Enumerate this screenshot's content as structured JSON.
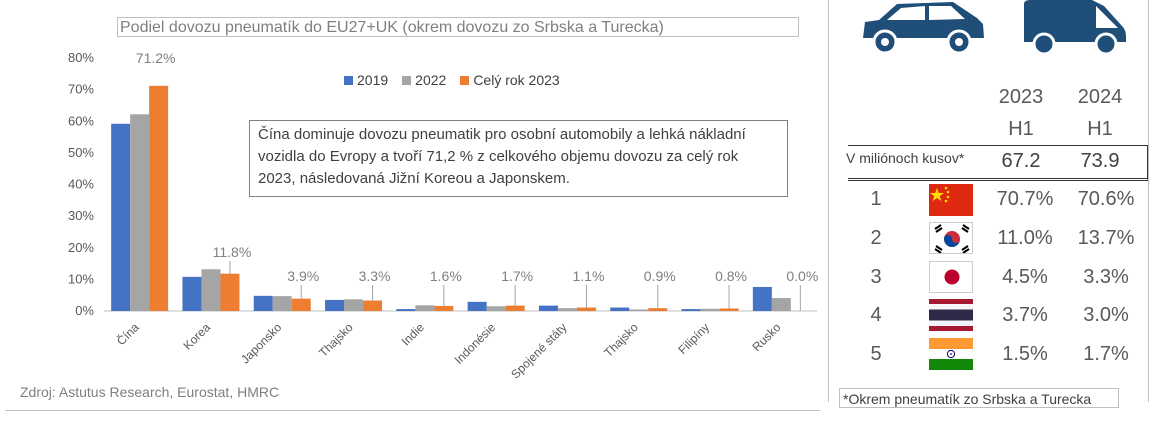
{
  "chart_data": {
    "type": "bar",
    "title": "Podiel dovozu pneumatík do EU27+UK (okrem dovozu zo Srbska a Turecka)",
    "categories": [
      "Čína",
      "Korea",
      "Japonsko",
      "Thajsko",
      "Indie",
      "Indonésie",
      "Spojené státy",
      "Thajsko",
      "Filipíny",
      "Rusko"
    ],
    "series": [
      {
        "name": "2019",
        "color": "#4472c4",
        "values": [
          0.592,
          0.108,
          0.048,
          0.035,
          0.006,
          0.029,
          0.017,
          0.011,
          0.006,
          0.076
        ]
      },
      {
        "name": "2022",
        "color": "#a5a5a5",
        "values": [
          0.622,
          0.132,
          0.047,
          0.037,
          0.018,
          0.015,
          0.009,
          0.005,
          0.007,
          0.041
        ]
      },
      {
        "name": "Celý rok 2023",
        "color": "#ed7d31",
        "values": [
          0.712,
          0.118,
          0.039,
          0.033,
          0.016,
          0.017,
          0.011,
          0.009,
          0.008,
          0.0
        ]
      }
    ],
    "data_labels": [
      "71.2%",
      "11.8%",
      "3.9%",
      "3.3%",
      "1.6%",
      "1.7%",
      "1.1%",
      "0.9%",
      "0.8%",
      "0.0%"
    ],
    "yticks": [
      "0%",
      "10%",
      "20%",
      "30%",
      "40%",
      "50%",
      "60%",
      "70%",
      "80%"
    ],
    "ylim": [
      0,
      0.8
    ],
    "legend_position": "top-center"
  },
  "annotation": "Čína dominuje dovozu pneumatik pro osobní automobily a lehká nákladní vozidla do Evropy a tvoří 71,2 % z celkového objemu dovozu za celý rok 2023, následovaná Jižní Koreou a Japonskem.",
  "source": "Zdroj: Astutus Research, Eurostat, HMRC",
  "table": {
    "col1_year": "2023",
    "col1_half": "H1",
    "col2_year": "2024",
    "col2_half": "H1",
    "units_label": "V miliónoch kusov*",
    "units_2023": "67.2",
    "units_2024": "73.9",
    "rows": [
      {
        "rank": "1",
        "flag": "china-flag-icon",
        "v2023": "70.7%",
        "v2024": "70.6%"
      },
      {
        "rank": "2",
        "flag": "south-korea-flag-icon",
        "v2023": "11.0%",
        "v2024": "13.7%"
      },
      {
        "rank": "3",
        "flag": "japan-flag-icon",
        "v2023": "4.5%",
        "v2024": "3.3%"
      },
      {
        "rank": "4",
        "flag": "thailand-flag-icon",
        "v2023": "3.7%",
        "v2024": "3.0%"
      },
      {
        "rank": "5",
        "flag": "india-flag-icon",
        "v2023": "1.5%",
        "v2024": "1.7%"
      }
    ],
    "footnote": "*Okrem pneumatík zo Srbska a Turecka"
  },
  "icons": {
    "car": "passenger-car-icon",
    "van": "delivery-van-icon"
  },
  "colors": {
    "vehicle": "#1f4e79",
    "accent_orange": "#ed7d31"
  }
}
